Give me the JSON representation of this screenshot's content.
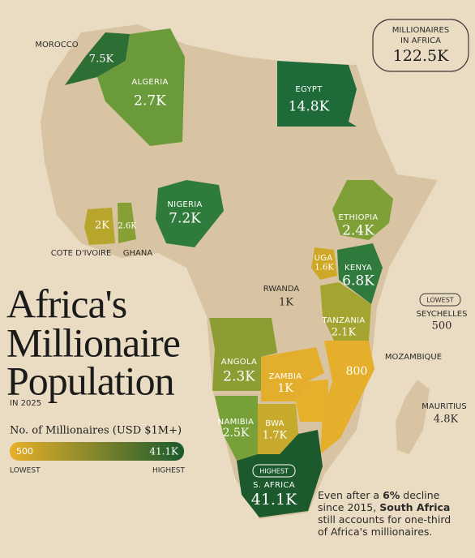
{
  "title": [
    "Africa's",
    "Millionaire",
    "Population"
  ],
  "subtitle": "IN 2025",
  "total": {
    "label": [
      "MILLIONAIRES",
      "IN AFRICA"
    ],
    "value": "122.5K"
  },
  "legend": {
    "title": "No. of Millionaires (USD $1M+)",
    "min": "500",
    "max": "41.1K",
    "min_label": "LOWEST",
    "max_label": "HIGHEST",
    "min_color": "#e8b02a",
    "max_color": "#1a5a2c"
  },
  "tags": {
    "highest": "HIGHEST",
    "lowest": "LOWEST"
  },
  "countries": [
    {
      "name": "MOROCCO",
      "value": "7.5K",
      "color": "#2d6e34"
    },
    {
      "name": "ALGERIA",
      "value": "2.7K",
      "color": "#6b9a3b"
    },
    {
      "name": "EGYPT",
      "value": "14.8K",
      "color": "#1e6a39"
    },
    {
      "name": "NIGERIA",
      "value": "7.2K",
      "color": "#2f7b3b"
    },
    {
      "name": "COTE D'IVOIRE",
      "value": "2K",
      "color": "#b8a52b"
    },
    {
      "name": "GHANA",
      "value": "2.6K",
      "color": "#86a035"
    },
    {
      "name": "ETHIOPIA",
      "value": "2.4K",
      "color": "#7ea037"
    },
    {
      "name": "UGA",
      "value": "1.6K",
      "color": "#cfa828"
    },
    {
      "name": "KENYA",
      "value": "6.8K",
      "color": "#2f7a3c"
    },
    {
      "name": "RWANDA",
      "value": "1K"
    },
    {
      "name": "TANZANIA",
      "value": "2.1K",
      "color": "#a4a430"
    },
    {
      "name": "SEYCHELLES",
      "value": "500"
    },
    {
      "name": "MOZAMBIQUE",
      "value": "800",
      "color": "#e5ae2b"
    },
    {
      "name": "ANGOLA",
      "value": "2.3K",
      "color": "#8c9d34"
    },
    {
      "name": "ZAMBIA",
      "value": "1K",
      "color": "#e3ae2c"
    },
    {
      "name": "NAMIBIA",
      "value": "2.5K",
      "color": "#78a038"
    },
    {
      "name": "BWA",
      "value": "1.7K",
      "color": "#c7a92b"
    },
    {
      "name": "S. AFRICA",
      "value": "41.1K",
      "color": "#1c5a2d"
    },
    {
      "name": "MAURITIUS",
      "value": "4.8K"
    }
  ],
  "note": [
    "Even after a ",
    "6%",
    " decline since 2015, ",
    "South Africa",
    " still accounts for one-third of Africa's millionaires."
  ]
}
